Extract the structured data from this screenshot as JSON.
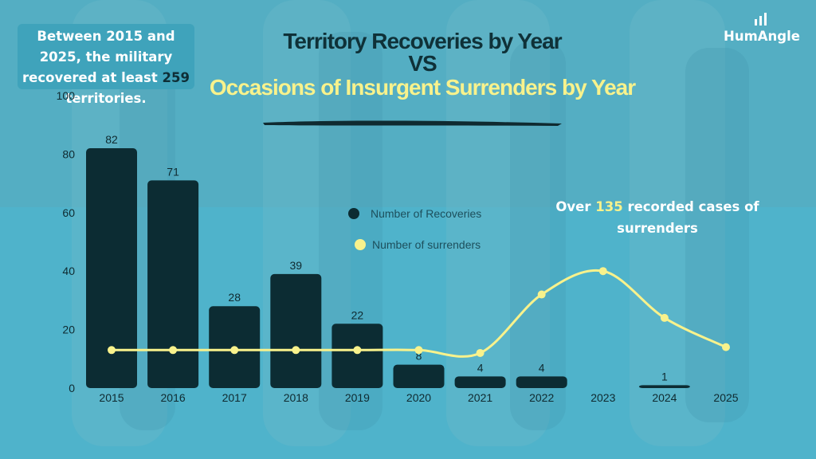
{
  "brand": {
    "name": "HumAngle"
  },
  "callout": {
    "prefix": "Between 2015 and 2025, the military recovered at least ",
    "number": "259",
    "suffix": " territories."
  },
  "title": {
    "line1": "Territory Recoveries by Year",
    "vs": "VS",
    "line2": "Occasions of Insurgent Surrenders by Year"
  },
  "annotation": {
    "prefix": "Over ",
    "number": "135",
    "suffix": " recorded cases of surrenders"
  },
  "colors": {
    "bar": "#0c2c33",
    "line": "#f8f28c",
    "title_dark": "#0f3138",
    "highlight": "#f8f28c"
  },
  "chart_data": {
    "type": "bar",
    "categories": [
      "2015",
      "2016",
      "2017",
      "2018",
      "2019",
      "2020",
      "2021",
      "2022",
      "2023",
      "2024",
      "2025"
    ],
    "series": [
      {
        "name": "Number of Recoveries",
        "type": "bar",
        "values": [
          82,
          71,
          28,
          39,
          22,
          8,
          4,
          4,
          null,
          1,
          null
        ],
        "data_labels": [
          "82",
          "71",
          "28",
          "39",
          "22",
          "8",
          "4",
          "4",
          "",
          "1",
          ""
        ]
      },
      {
        "name": "Number of surrenders",
        "type": "line",
        "smooth": true,
        "values": [
          13,
          13,
          13,
          13,
          13,
          13,
          12,
          32,
          40,
          24,
          14
        ]
      }
    ],
    "ylim": [
      0,
      100
    ],
    "yticks": [
      0,
      20,
      40,
      60,
      80,
      100
    ],
    "legend": "center",
    "grid": false
  }
}
